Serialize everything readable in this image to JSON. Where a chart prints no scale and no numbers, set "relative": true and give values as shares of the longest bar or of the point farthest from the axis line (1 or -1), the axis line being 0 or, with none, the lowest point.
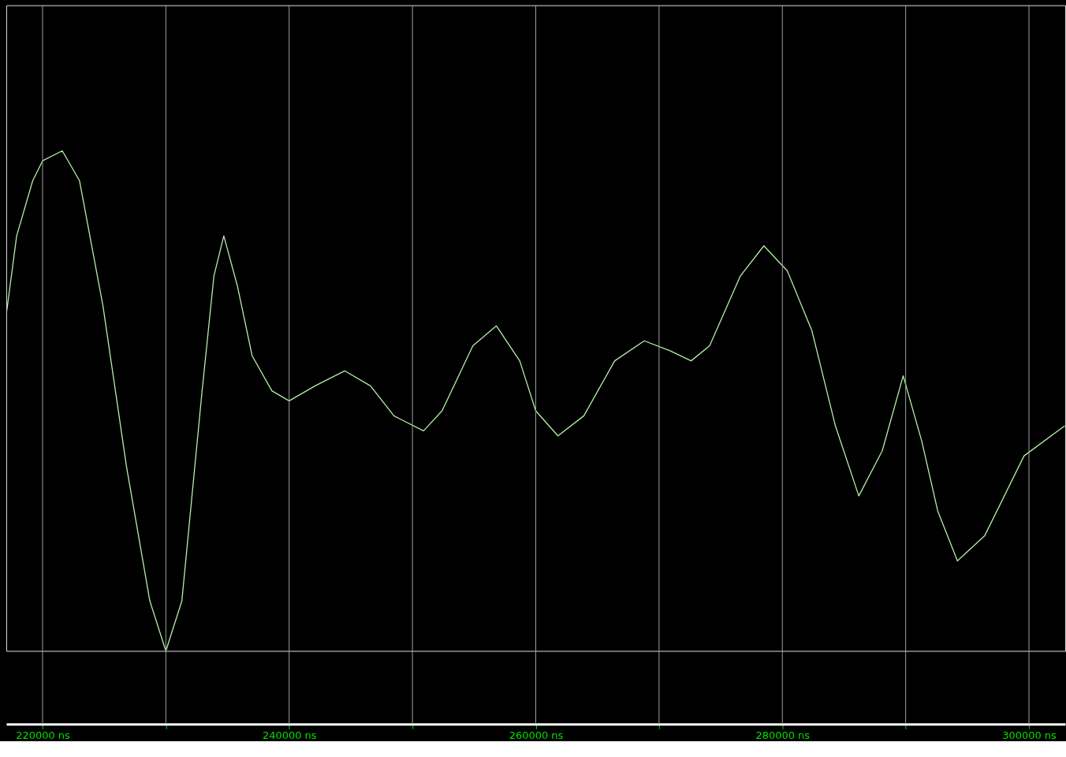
{
  "chart_data": {
    "type": "line",
    "relative": true,
    "grid": "x",
    "legend": false,
    "marker": "none",
    "line_style": "solid",
    "xlim": [
      217060,
      302940
    ],
    "xticks": [
      {
        "value": 220000,
        "label": "220000 ns"
      },
      {
        "value": 230000,
        "label": null
      },
      {
        "value": 240000,
        "label": "240000 ns"
      },
      {
        "value": 250000,
        "label": null
      },
      {
        "value": 260000,
        "label": "260000 ns"
      },
      {
        "value": 270000,
        "label": null
      },
      {
        "value": 280000,
        "label": "280000 ns"
      },
      {
        "value": 290000,
        "label": null
      },
      {
        "value": 300000,
        "label": "300000 ns"
      }
    ],
    "x": [
      217100,
      217900,
      219200,
      220000,
      221600,
      223000,
      224900,
      226800,
      228700,
      230000,
      231300,
      232900,
      233900,
      234700,
      235800,
      237000,
      238600,
      240000,
      242100,
      244500,
      246600,
      248500,
      250900,
      252400,
      254900,
      256800,
      258700,
      260000,
      261800,
      263900,
      266400,
      268800,
      270900,
      272600,
      274100,
      276600,
      278500,
      280400,
      282400,
      284300,
      286200,
      288100,
      289800,
      291300,
      292600,
      294200,
      296400,
      299600,
      302900
    ],
    "series": [
      {
        "color": "#b4f0a8",
        "values": [
          0.68,
          0.83,
          0.94,
          0.98,
          1,
          0.94,
          0.69,
          0.37,
          0.1,
          0,
          0.1,
          0.51,
          0.75,
          0.83,
          0.73,
          0.59,
          0.52,
          0.5,
          0.53,
          0.56,
          0.53,
          0.47,
          0.44,
          0.48,
          0.61,
          0.65,
          0.58,
          0.48,
          0.43,
          0.47,
          0.58,
          0.62,
          0.6,
          0.58,
          0.61,
          0.75,
          0.81,
          0.76,
          0.64,
          0.45,
          0.31,
          0.4,
          0.55,
          0.42,
          0.28,
          0.18,
          0.23,
          0.39,
          0.45
        ]
      }
    ]
  }
}
